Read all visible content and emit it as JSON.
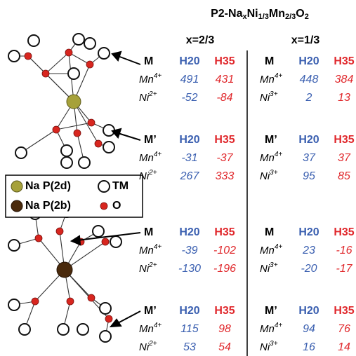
{
  "title_parts": [
    "P2-Na",
    "x",
    "Ni",
    "1/3",
    "Mn",
    "2/3",
    "O",
    "2"
  ],
  "panels": [
    {
      "label": "x=2/3",
      "blocks": [
        {
          "site": "M",
          "columns": [
            "H20",
            "H35"
          ],
          "rows": [
            {
              "element": "Mn",
              "charge": "4+",
              "values": [
                491,
                431
              ]
            },
            {
              "element": "Ni",
              "charge": "2+",
              "values": [
                -52,
                -84
              ]
            }
          ]
        },
        {
          "site": "M’",
          "columns": [
            "H20",
            "H35"
          ],
          "rows": [
            {
              "element": "Mn",
              "charge": "4+",
              "values": [
                -31,
                -37
              ]
            },
            {
              "element": "Ni",
              "charge": "2+",
              "values": [
                267,
                333
              ]
            }
          ]
        },
        {
          "site": "M",
          "columns": [
            "H20",
            "H35"
          ],
          "rows": [
            {
              "element": "Mn",
              "charge": "4+",
              "values": [
                -39,
                -102
              ]
            },
            {
              "element": "Ni",
              "charge": "2+",
              "values": [
                -130,
                -196
              ]
            }
          ]
        },
        {
          "site": "M’",
          "columns": [
            "H20",
            "H35"
          ],
          "rows": [
            {
              "element": "Mn",
              "charge": "4+",
              "values": [
                115,
                98
              ]
            },
            {
              "element": "Ni",
              "charge": "2+",
              "values": [
                53,
                54
              ]
            }
          ]
        }
      ]
    },
    {
      "label": "x=1/3",
      "blocks": [
        {
          "site": "M",
          "columns": [
            "H20",
            "H35"
          ],
          "rows": [
            {
              "element": "Mn",
              "charge": "4+",
              "values": [
                448,
                384
              ]
            },
            {
              "element": "Ni",
              "charge": "3+",
              "values": [
                2,
                13
              ]
            }
          ]
        },
        {
          "site": "M’",
          "columns": [
            "H20",
            "H35"
          ],
          "rows": [
            {
              "element": "Mn",
              "charge": "4+",
              "values": [
                37,
                37
              ]
            },
            {
              "element": "Ni",
              "charge": "3+",
              "values": [
                95,
                85
              ]
            }
          ]
        },
        {
          "site": "M",
          "columns": [
            "H20",
            "H35"
          ],
          "rows": [
            {
              "element": "Mn",
              "charge": "4+",
              "values": [
                23,
                -16
              ]
            },
            {
              "element": "Ni",
              "charge": "3+",
              "values": [
                -20,
                -17
              ]
            }
          ]
        },
        {
          "site": "M’",
          "columns": [
            "H20",
            "H35"
          ],
          "rows": [
            {
              "element": "Mn",
              "charge": "4+",
              "values": [
                94,
                76
              ]
            },
            {
              "element": "Ni",
              "charge": "3+",
              "values": [
                16,
                14
              ]
            }
          ]
        }
      ]
    }
  ],
  "legend": [
    "Na P(2d)",
    "TM",
    "Na P(2b)",
    "O"
  ]
}
